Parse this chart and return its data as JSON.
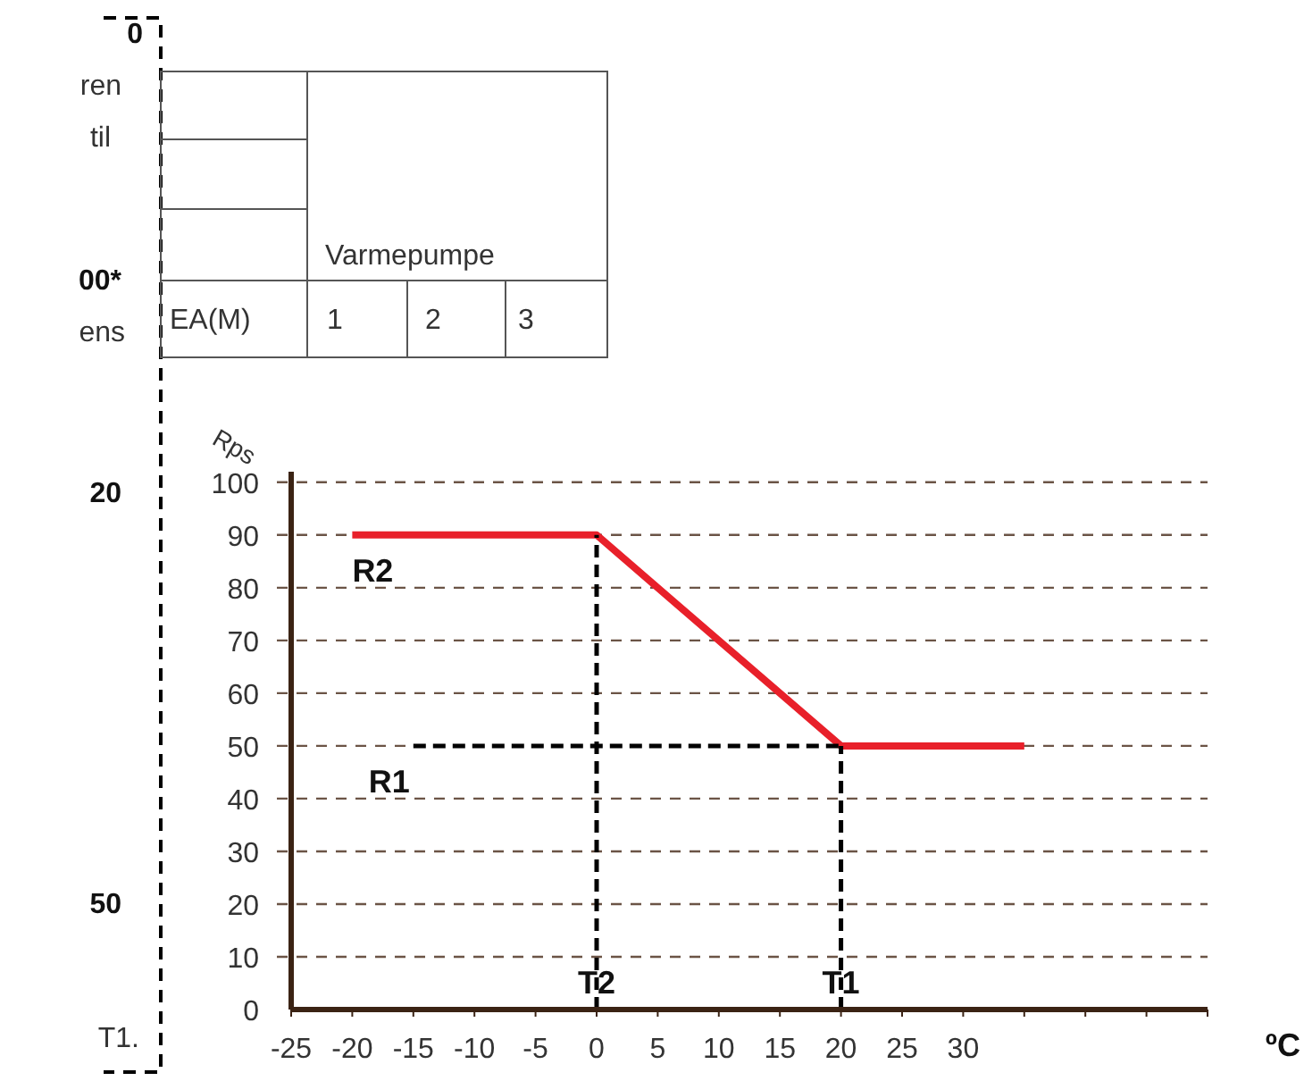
{
  "chart_data": {
    "type": "line",
    "xlabel": "ºC",
    "ylabel": "Rps",
    "xlim": [
      -25,
      50
    ],
    "ylim": [
      0,
      102
    ],
    "xticks": [
      -25,
      -20,
      -15,
      -10,
      -5,
      0,
      5,
      10,
      15,
      20,
      25,
      30,
      {
        "value": 35,
        "label": null
      },
      {
        "value": 40,
        "label": null
      },
      {
        "value": 45,
        "label": null
      },
      {
        "value": 50,
        "label": null
      }
    ],
    "yticks": [
      0,
      10,
      20,
      30,
      40,
      50,
      60,
      70,
      80,
      90,
      100
    ],
    "grid": "y",
    "series": [
      {
        "color": "#e8202a",
        "x": [
          -20,
          0,
          20,
          35
        ],
        "values": [
          90,
          90,
          50,
          50
        ],
        "line_style": "solid"
      },
      {
        "color": "#000000",
        "x": [
          0,
          0
        ],
        "values": [
          0,
          90
        ],
        "line_style": "dashed"
      },
      {
        "color": "#000000",
        "x": [
          -15,
          20
        ],
        "values": [
          50,
          50
        ],
        "line_style": "dashed"
      },
      {
        "color": "#000000",
        "x": [
          20,
          20
        ],
        "values": [
          0,
          50
        ],
        "line_style": "dashed"
      }
    ],
    "annotations": [
      "0",
      "ren",
      "til",
      "00*",
      "ens",
      "20",
      "50",
      "T1.",
      "Varmepumpe",
      "EA(M)",
      "1",
      "2",
      "3",
      {
        "text": "R2",
        "x": -20,
        "y": 90
      },
      {
        "text": "R1",
        "x": -15,
        "y": 50
      },
      {
        "text": "T2",
        "x": 0,
        "y": 0
      },
      {
        "text": "T1",
        "x": 20,
        "y": 0
      }
    ]
  }
}
